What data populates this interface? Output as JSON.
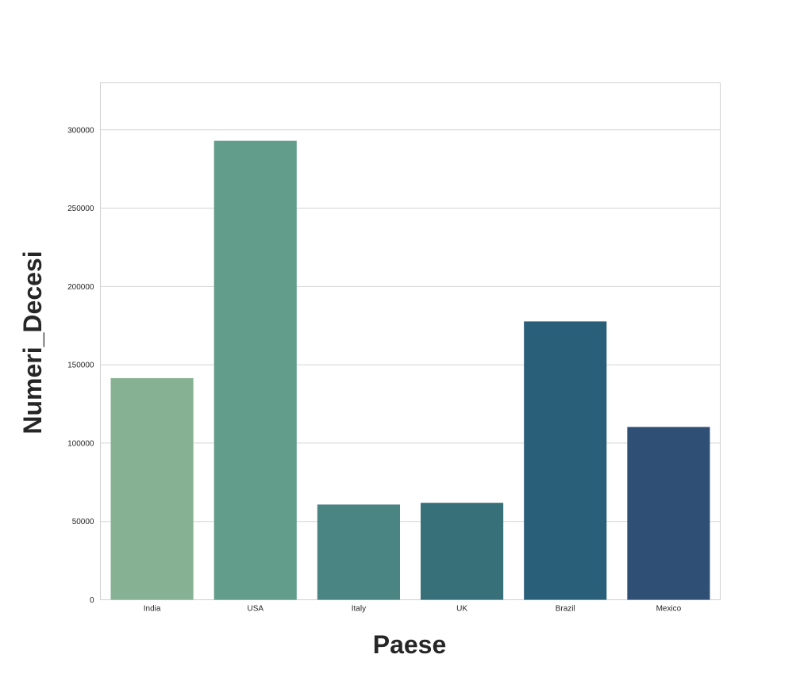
{
  "chart_data": {
    "type": "bar",
    "title": "",
    "xlabel": "Paese",
    "ylabel": "Numeri_Decesi",
    "categories": [
      "India",
      "USA",
      "Italy",
      "UK",
      "Brazil",
      "Mexico"
    ],
    "values": [
      141500,
      293000,
      60800,
      61900,
      177700,
      110300
    ],
    "colors": [
      "#86b293",
      "#629d8c",
      "#4a8583",
      "#377078",
      "#2a5f7a",
      "#304f74"
    ],
    "ylim": [
      0,
      330000
    ],
    "yticks": [
      0,
      50000,
      100000,
      150000,
      200000,
      250000,
      300000
    ],
    "ytick_labels": [
      "0",
      "50000",
      "100000",
      "150000",
      "200000",
      "250000",
      "300000"
    ],
    "grid": true,
    "legend": "none"
  }
}
